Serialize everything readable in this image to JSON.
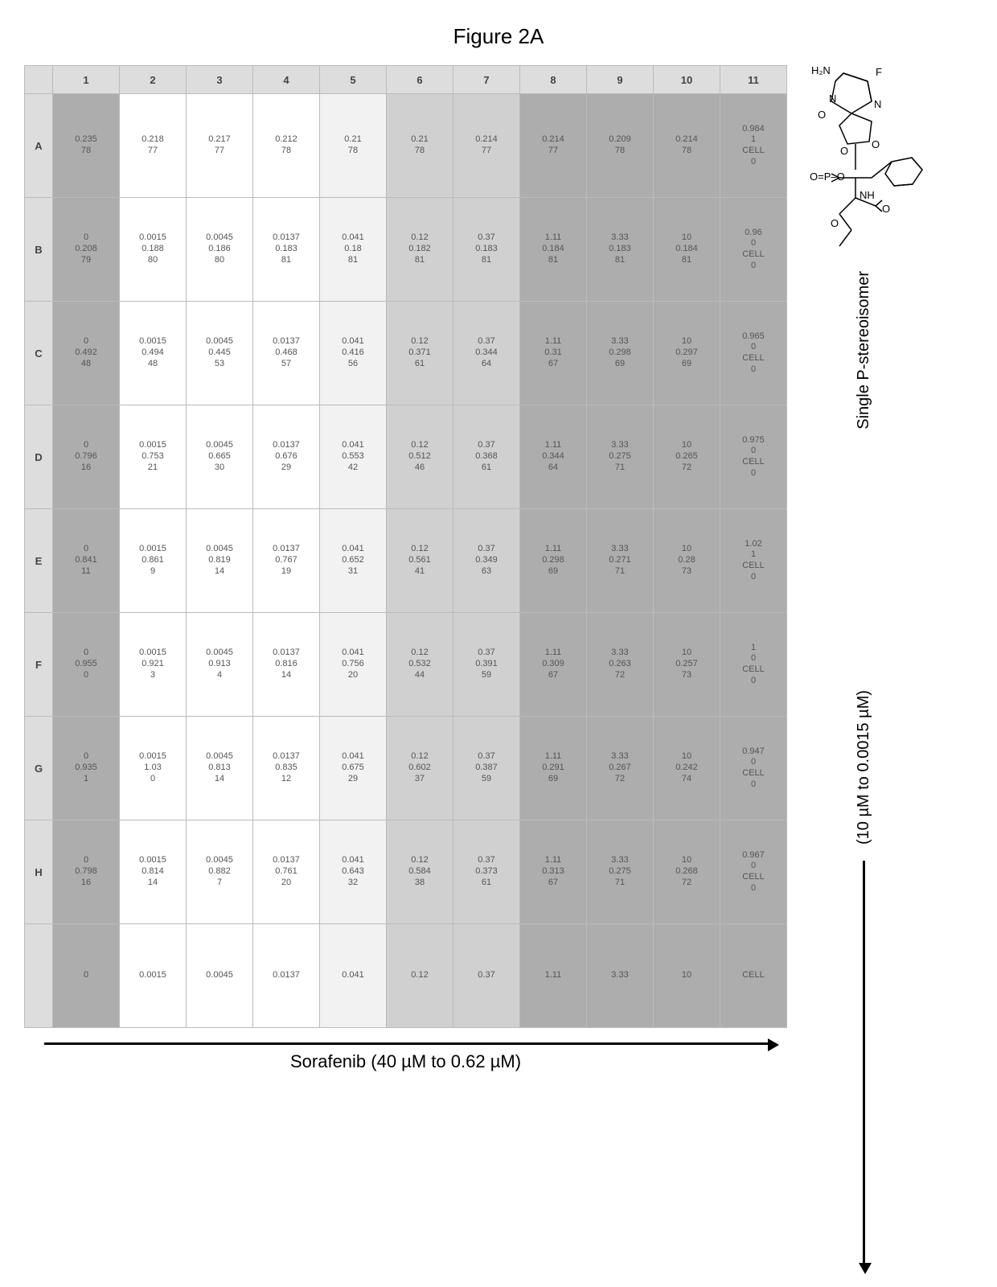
{
  "figure_title": "Figure 2A",
  "x_axis_label": "Sorafenib (40 µM to 0.62 µM)",
  "y_axis_label": "(10 µM to 0.0015 µM)",
  "right_label": "Single P-stereoisomer",
  "plate": {
    "col_headers": [
      "1",
      "2",
      "3",
      "4",
      "5",
      "6",
      "7",
      "8",
      "9",
      "10",
      "11"
    ],
    "row_headers": [
      "A",
      "B",
      "C",
      "D",
      "E",
      "F",
      "G",
      "H"
    ],
    "col_shade": [
      "shade-dark",
      "shade-none",
      "shade-none",
      "shade-none",
      "shade-light",
      "shade-med",
      "shade-med",
      "shade-dark",
      "shade-dark",
      "shade-dark",
      "shade-dark"
    ],
    "col11_suffix": "CELL",
    "cells": [
      [
        [
          "0.235",
          "78"
        ],
        [
          "0.218",
          "77"
        ],
        [
          "0.217",
          "77"
        ],
        [
          "0.212",
          "78"
        ],
        [
          "0.21",
          "78"
        ],
        [
          "0.21",
          "78"
        ],
        [
          "0.214",
          "77"
        ],
        [
          "0.214",
          "77"
        ],
        [
          "0.209",
          "78"
        ],
        [
          "0.214",
          "78"
        ],
        [
          "0.984",
          "1",
          "0"
        ]
      ],
      [
        [
          "0",
          "0.208",
          "79"
        ],
        [
          "0.0015",
          "0.188",
          "80"
        ],
        [
          "0.0045",
          "0.186",
          "80"
        ],
        [
          "0.0137",
          "0.183",
          "81"
        ],
        [
          "0.041",
          "0.18",
          "81"
        ],
        [
          "0.12",
          "0.182",
          "81"
        ],
        [
          "0.37",
          "0.183",
          "81"
        ],
        [
          "1.11",
          "0.184",
          "81"
        ],
        [
          "3.33",
          "0.183",
          "81"
        ],
        [
          "10",
          "0.184",
          "81"
        ],
        [
          "0.96",
          "0",
          "0"
        ]
      ],
      [
        [
          "0",
          "0.492",
          "48"
        ],
        [
          "0.0015",
          "0.494",
          "48"
        ],
        [
          "0.0045",
          "0.445",
          "53"
        ],
        [
          "0.0137",
          "0.468",
          "57"
        ],
        [
          "0.041",
          "0.416",
          "56"
        ],
        [
          "0.12",
          "0.371",
          "61"
        ],
        [
          "0.37",
          "0.344",
          "64"
        ],
        [
          "1.11",
          "0.31",
          "67"
        ],
        [
          "3.33",
          "0.298",
          "69"
        ],
        [
          "10",
          "0.297",
          "69"
        ],
        [
          "0.965",
          "0",
          "0"
        ]
      ],
      [
        [
          "0",
          "0.796",
          "16"
        ],
        [
          "0.0015",
          "0.753",
          "21"
        ],
        [
          "0.0045",
          "0.665",
          "30"
        ],
        [
          "0.0137",
          "0.676",
          "29"
        ],
        [
          "0.041",
          "0.553",
          "42"
        ],
        [
          "0.12",
          "0.512",
          "46"
        ],
        [
          "0.37",
          "0.368",
          "61"
        ],
        [
          "1.11",
          "0.344",
          "64"
        ],
        [
          "3.33",
          "0.275",
          "71"
        ],
        [
          "10",
          "0.265",
          "72"
        ],
        [
          "0.975",
          "0",
          "0"
        ]
      ],
      [
        [
          "0",
          "0.841",
          "11"
        ],
        [
          "0.0015",
          "0.861",
          "9"
        ],
        [
          "0.0045",
          "0.819",
          "14"
        ],
        [
          "0.0137",
          "0.767",
          "19"
        ],
        [
          "0.041",
          "0.652",
          "31"
        ],
        [
          "0.12",
          "0.561",
          "41"
        ],
        [
          "0.37",
          "0.349",
          "63"
        ],
        [
          "1.11",
          "0.298",
          "69"
        ],
        [
          "3.33",
          "0.271",
          "71"
        ],
        [
          "10",
          "0.28",
          "73"
        ],
        [
          "1.02",
          "1",
          "0"
        ]
      ],
      [
        [
          "0",
          "0.955",
          "0"
        ],
        [
          "0.0015",
          "0.921",
          "3"
        ],
        [
          "0.0045",
          "0.913",
          "4"
        ],
        [
          "0.0137",
          "0.816",
          "14"
        ],
        [
          "0.041",
          "0.756",
          "20"
        ],
        [
          "0.12",
          "0.532",
          "44"
        ],
        [
          "0.37",
          "0.391",
          "59"
        ],
        [
          "1.11",
          "0.309",
          "67"
        ],
        [
          "3.33",
          "0.263",
          "72"
        ],
        [
          "10",
          "0.257",
          "73"
        ],
        [
          "1",
          "0",
          "0"
        ]
      ],
      [
        [
          "0",
          "0.935",
          "1"
        ],
        [
          "0.0015",
          "1.03",
          "0"
        ],
        [
          "0.0045",
          "0.813",
          "14"
        ],
        [
          "0.0137",
          "0.835",
          "12"
        ],
        [
          "0.041",
          "0.675",
          "29"
        ],
        [
          "0.12",
          "0.602",
          "37"
        ],
        [
          "0.37",
          "0.387",
          "59"
        ],
        [
          "1.11",
          "0.291",
          "69"
        ],
        [
          "3.33",
          "0.267",
          "72"
        ],
        [
          "10",
          "0.242",
          "74"
        ],
        [
          "0.947",
          "0",
          "0"
        ]
      ],
      [
        [
          "0",
          "0.798",
          "16"
        ],
        [
          "0.0015",
          "0.814",
          "14"
        ],
        [
          "0.0045",
          "0.882",
          "7"
        ],
        [
          "0.0137",
          "0.761",
          "20"
        ],
        [
          "0.041",
          "0.643",
          "32"
        ],
        [
          "0.12",
          "0.584",
          "38"
        ],
        [
          "0.37",
          "0.373",
          "61"
        ],
        [
          "1.11",
          "0.313",
          "67"
        ],
        [
          "3.33",
          "0.275",
          "71"
        ],
        [
          "10",
          "0.268",
          "72"
        ],
        [
          "0.967",
          "0",
          "0"
        ]
      ],
      [
        [
          "0"
        ],
        [
          "0.0015"
        ],
        [
          "0.0045"
        ],
        [
          "0.0137"
        ],
        [
          "0.041"
        ],
        [
          "0.12"
        ],
        [
          "0.37"
        ],
        [
          "1.11"
        ],
        [
          "3.33"
        ],
        [
          "10"
        ],
        [
          ""
        ]
      ]
    ]
  },
  "structure_labels": {
    "H2N": "H₂N",
    "F": "F",
    "N": "N",
    "O": "O",
    "OPO": "O=P–O",
    "NH": "NH"
  }
}
